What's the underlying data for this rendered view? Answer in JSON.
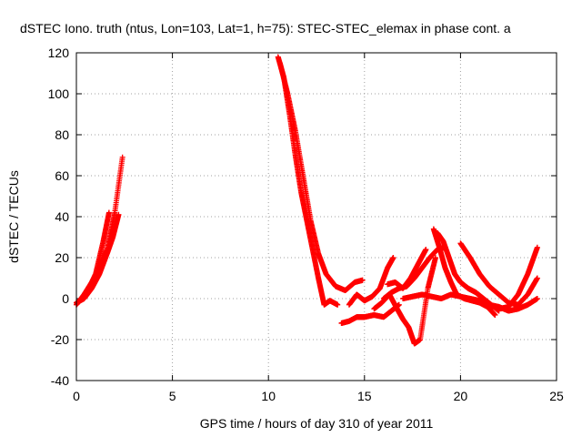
{
  "chart_data": {
    "type": "scatter",
    "title": "dSTEC Iono. truth (ntus, Lon=103, Lat=1, h=75): STEC-STEC_elemax in phase cont. a",
    "xlabel": "GPS time / hours of day 310 of year 2011",
    "ylabel": "dSTEC  / TECUs",
    "xlim": [
      0,
      25
    ],
    "ylim": [
      -40,
      120
    ],
    "xticks": [
      0,
      5,
      10,
      15,
      20,
      25
    ],
    "yticks": [
      -40,
      -20,
      0,
      20,
      40,
      60,
      80,
      100,
      120
    ],
    "xtick_labels": [
      "0",
      "5",
      "10",
      "15",
      "20",
      "25"
    ],
    "ytick_labels": [
      "-40",
      "-20",
      "0",
      "20",
      "40",
      "60",
      "80",
      "100",
      "120"
    ],
    "grid": true,
    "marker": "+",
    "color": "#ff0000",
    "series": [
      {
        "x": [
          0,
          0.4,
          0.8,
          1.2,
          1.6,
          2.0,
          2.4
        ],
        "y": [
          -3,
          2,
          8,
          15,
          24,
          42,
          69
        ]
      },
      {
        "x": [
          0,
          0.4,
          0.8,
          1.2,
          1.6,
          1.9,
          2.2
        ],
        "y": [
          -2,
          0,
          5,
          12,
          22,
          30,
          41
        ]
      },
      {
        "x": [
          0.2,
          0.6,
          1.0,
          1.4,
          1.7
        ],
        "y": [
          -1,
          4,
          12,
          28,
          42
        ]
      },
      {
        "x": [
          10.5,
          10.8,
          11.1,
          11.4,
          11.7,
          12.0,
          12.3,
          12.6,
          12.9,
          13.2,
          13.6
        ],
        "y": [
          118,
          108,
          90,
          70,
          52,
          38,
          24,
          10,
          -3,
          -1,
          -3
        ]
      },
      {
        "x": [
          10.6,
          11.0,
          11.4,
          11.8,
          12.2,
          12.6,
          13.0,
          13.5,
          14.0,
          14.5,
          14.9
        ],
        "y": [
          115,
          100,
          82,
          60,
          38,
          22,
          12,
          6,
          4,
          8,
          9
        ]
      },
      {
        "x": [
          13.8,
          14.2,
          14.6,
          15.0,
          15.5,
          16.0,
          16.4,
          16.8
        ],
        "y": [
          -12,
          -11,
          -9,
          -9,
          -8,
          -9,
          -6,
          -3
        ]
      },
      {
        "x": [
          14.2,
          14.6,
          15.0,
          15.4,
          15.8,
          16.2,
          16.5
        ],
        "y": [
          -3,
          2,
          -1,
          1,
          5,
          15,
          20
        ]
      },
      {
        "x": [
          15.5,
          15.9,
          16.3,
          16.7,
          17.0,
          17.3,
          17.6,
          17.9,
          18.3,
          18.7
        ],
        "y": [
          -5,
          -2,
          2,
          -5,
          -10,
          -14,
          -22,
          -20,
          5,
          20
        ]
      },
      {
        "x": [
          16.0,
          16.4,
          16.8,
          17.2,
          17.6,
          18.0,
          18.4,
          18.8,
          19.2
        ],
        "y": [
          0,
          3,
          5,
          6,
          10,
          15,
          20,
          24,
          25
        ]
      },
      {
        "x": [
          16.2,
          16.6,
          17.0,
          17.4,
          17.8,
          18.2
        ],
        "y": [
          7,
          8,
          5,
          10,
          17,
          24
        ]
      },
      {
        "x": [
          18.6,
          18.9,
          19.2,
          19.5,
          19.8,
          20.2,
          20.6,
          21.0,
          21.4,
          21.8
        ],
        "y": [
          34,
          25,
          15,
          8,
          2,
          0,
          -1,
          -2,
          -4,
          -8
        ]
      },
      {
        "x": [
          18.8,
          19.1,
          19.4,
          19.7,
          20.0,
          20.4,
          20.8,
          21.2,
          21.6,
          22.0
        ],
        "y": [
          32,
          28,
          20,
          12,
          8,
          5,
          3,
          0,
          -3,
          -6
        ]
      },
      {
        "x": [
          17.0,
          17.5,
          18.0,
          18.5,
          19.0,
          19.5,
          20.0,
          20.5,
          21.0,
          21.5,
          22.0,
          22.5,
          23.0,
          23.5,
          24.0
        ],
        "y": [
          0,
          1,
          2,
          1,
          0,
          2,
          1,
          0,
          -1,
          -3,
          -4,
          -6,
          -5,
          -3,
          0
        ]
      },
      {
        "x": [
          20.0,
          20.5,
          21.0,
          21.5,
          22.0,
          22.5,
          23.0,
          23.5,
          24.0
        ],
        "y": [
          27,
          20,
          12,
          6,
          2,
          -2,
          -3,
          2,
          10
        ]
      },
      {
        "x": [
          21.5,
          22.0,
          22.5,
          23.0,
          23.5,
          24.0
        ],
        "y": [
          -3,
          -5,
          -4,
          2,
          12,
          25
        ]
      }
    ]
  }
}
